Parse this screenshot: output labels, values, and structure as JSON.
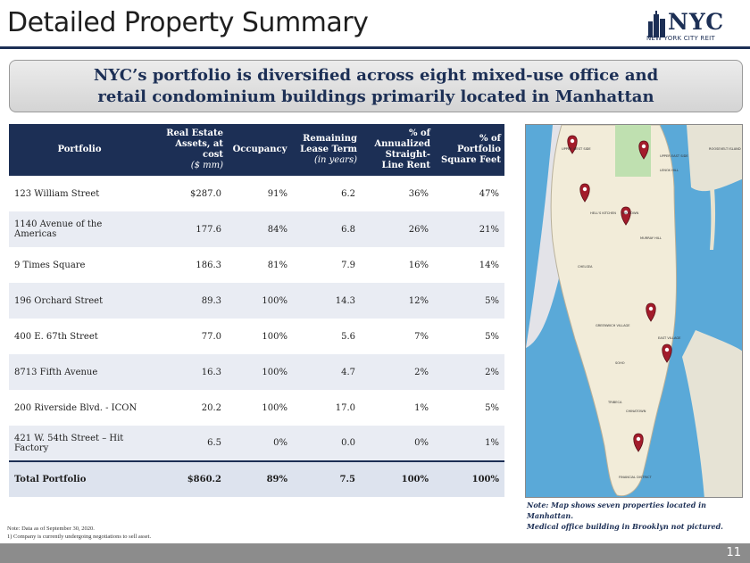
{
  "title": "Detailed Property Summary",
  "logo": {
    "name": "NYC",
    "subtitle": "NEW YORK CITY REIT"
  },
  "banner": {
    "line1": "NYC’s portfolio is diversified across eight mixed-use office and",
    "line2": "retail condominium buildings primarily located in Manhattan"
  },
  "table": {
    "headers": [
      {
        "text": "Portfolio",
        "unit": ""
      },
      {
        "text": "Real Estate Assets, at cost",
        "unit": "($ mm)"
      },
      {
        "text": "Occupancy",
        "unit": ""
      },
      {
        "text": "Remaining Lease Term",
        "unit": "(in years)"
      },
      {
        "text": "% of Annualized Straight-Line Rent",
        "unit": ""
      },
      {
        "text": "% of Portfolio Square Feet",
        "unit": ""
      }
    ],
    "rows": [
      {
        "name": "123 William Street",
        "sup": "",
        "assets": "$287.0",
        "occupancy": "91%",
        "term": "6.2",
        "rent": "36%",
        "sqft": "47%"
      },
      {
        "name": "1140 Avenue of the Americas",
        "sup": "",
        "assets": "177.6",
        "occupancy": "84%",
        "term": "6.8",
        "rent": "26%",
        "sqft": "21%"
      },
      {
        "name": "9 Times Square",
        "sup": "",
        "assets": "186.3",
        "occupancy": "81%",
        "term": "7.9",
        "rent": "16%",
        "sqft": "14%"
      },
      {
        "name": "196 Orchard Street",
        "sup": "",
        "assets": "89.3",
        "occupancy": "100%",
        "term": "14.3",
        "rent": "12%",
        "sqft": "5%"
      },
      {
        "name": "400 E. 67th Street",
        "sup": "",
        "assets": "77.0",
        "occupancy": "100%",
        "term": "5.6",
        "rent": "7%",
        "sqft": "5%"
      },
      {
        "name": "8713 Fifth Avenue",
        "sup": "",
        "assets": "16.3",
        "occupancy": "100%",
        "term": "4.7",
        "rent": "2%",
        "sqft": "2%"
      },
      {
        "name": "200 Riverside Blvd. - ICON",
        "sup": "",
        "assets": "20.2",
        "occupancy": "100%",
        "term": "17.0",
        "rent": "1%",
        "sqft": "5%"
      },
      {
        "name": "421 W. 54th Street – Hit Factory",
        "sup": "(1)",
        "assets": "6.5",
        "occupancy": "0%",
        "term": "0.0",
        "rent": "0%",
        "sqft": "1%"
      }
    ],
    "total": {
      "name": "Total Portfolio",
      "assets": "$860.2",
      "occupancy": "89%",
      "term": "7.5",
      "rent": "100%",
      "sqft": "100%"
    }
  },
  "map": {
    "labels": [
      "UPPER WEST SIDE",
      "UPPER EAST SIDE",
      "MIDTOWN",
      "CHELSEA",
      "SOHO",
      "TRIBECA",
      "CHINATOWN",
      "FINANCIAL DISTRICT",
      "EAST VILLAGE",
      "GREENWICH VILLAGE",
      "MURRAY HILL",
      "LENOX HILL",
      "HELL'S KITCHEN",
      "ROOSEVELT ISLAND"
    ],
    "pin_count": 7
  },
  "map_note": {
    "line1": "Note: Map shows seven properties located in Manhattan.",
    "line2": "Medical office building in Brooklyn not pictured."
  },
  "footnotes": {
    "line1": "Note: Data as of September 30, 2020.",
    "line2": "1)      Company is currently undergoing negotiations to sell asset."
  },
  "page_number": "11"
}
